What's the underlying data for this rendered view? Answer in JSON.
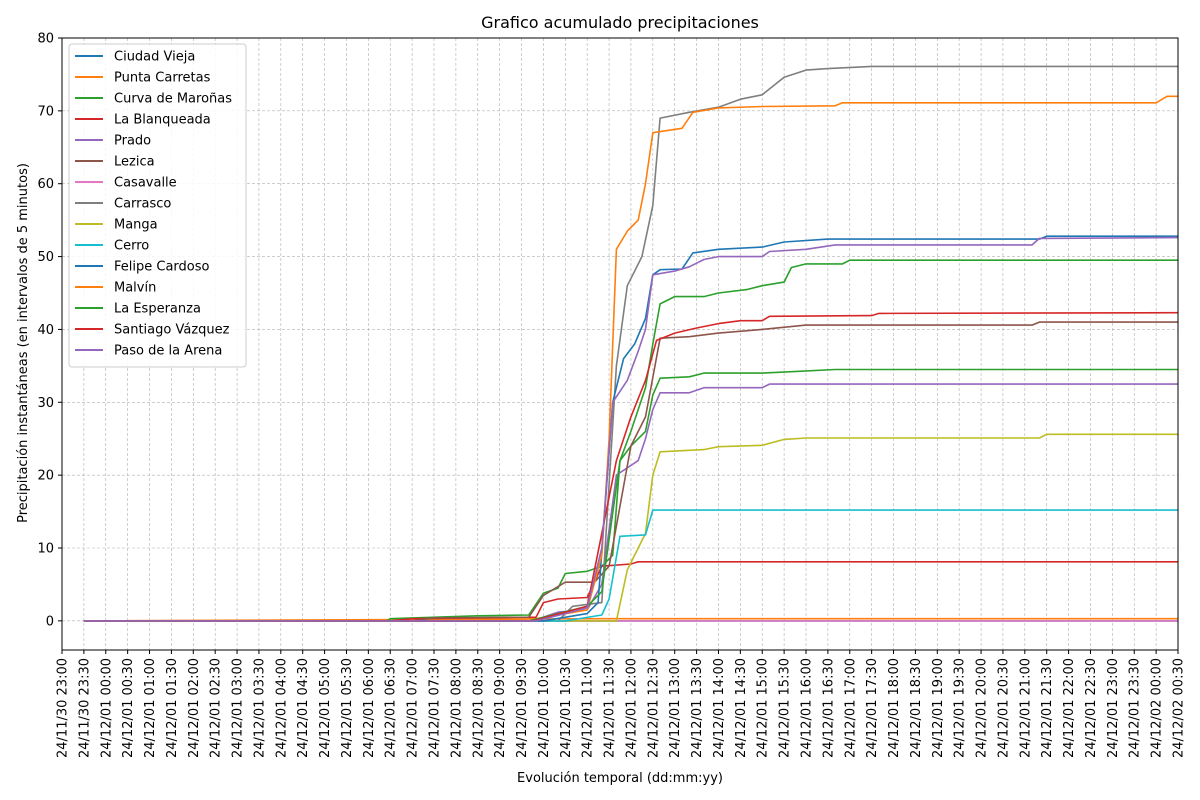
{
  "chart_data": {
    "type": "line",
    "title": "Grafico acumulado precipitaciones",
    "xlabel": "Evolución temporal (dd:mm:yy)",
    "ylabel": "Precipitación instantáneas (en intervalos de 5 minutos)",
    "ylim": [
      -4,
      80
    ],
    "yticks": [
      0,
      10,
      20,
      30,
      40,
      50,
      60,
      70,
      80
    ],
    "xlim": [
      "24/11/30 23:00",
      "24/12/02 00:30"
    ],
    "xticks": [
      "24/11/30 23:00",
      "24/11/30 23:30",
      "24/12/01 00:00",
      "24/12/01 00:30",
      "24/12/01 01:00",
      "24/12/01 01:30",
      "24/12/01 02:00",
      "24/12/01 02:30",
      "24/12/01 03:00",
      "24/12/01 03:30",
      "24/12/01 04:00",
      "24/12/01 04:30",
      "24/12/01 05:00",
      "24/12/01 05:30",
      "24/12/01 06:00",
      "24/12/01 06:30",
      "24/12/01 07:00",
      "24/12/01 07:30",
      "24/12/01 08:00",
      "24/12/01 08:30",
      "24/12/01 09:00",
      "24/12/01 09:30",
      "24/12/01 10:00",
      "24/12/01 10:30",
      "24/12/01 11:00",
      "24/12/01 11:30",
      "24/12/01 12:00",
      "24/12/01 12:30",
      "24/12/01 13:00",
      "24/12/01 13:30",
      "24/12/01 14:00",
      "24/12/01 14:30",
      "24/12/01 15:00",
      "24/12/01 15:30",
      "24/12/01 16:00",
      "24/12/01 16:30",
      "24/12/01 17:00",
      "24/12/01 17:30",
      "24/12/01 18:00",
      "24/12/01 18:30",
      "24/12/01 19:00",
      "24/12/01 19:30",
      "24/12/01 20:00",
      "24/12/01 20:30",
      "24/12/01 21:00",
      "24/12/01 21:30",
      "24/12/01 22:00",
      "24/12/01 22:30",
      "24/12/01 23:00",
      "24/12/01 23:30",
      "24/12/02 00:00",
      "24/12/02 00:30"
    ],
    "grid": true,
    "legend": "top-left",
    "series": [
      {
        "name": "Ciudad Vieja",
        "color": "#1f77b4",
        "points": [
          [
            "24/11/30 23:30",
            0
          ],
          [
            "24/12/01 11:30",
            0
          ],
          [
            "24/12/02 00:30",
            0
          ]
        ]
      },
      {
        "name": "Punta Carretas",
        "color": "#ff7f0e",
        "points": [
          [
            "24/11/30 23:30",
            0
          ],
          [
            "24/12/01 11:30",
            0.3
          ],
          [
            "24/12/02 00:30",
            0.3
          ]
        ]
      },
      {
        "name": "Curva de Maroñas",
        "color": "#2ca02c",
        "points": [
          [
            "24/11/30 23:30",
            0
          ],
          [
            "24/12/01 06:25",
            0
          ],
          [
            "24/12/01 06:30",
            0.3
          ],
          [
            "24/12/01 08:30",
            0.7
          ],
          [
            "24/12/01 09:40",
            0.8
          ],
          [
            "24/12/01 10:00",
            3.8
          ],
          [
            "24/12/01 10:20",
            4.5
          ],
          [
            "24/12/01 10:30",
            6.5
          ],
          [
            "24/12/01 11:00",
            6.8
          ],
          [
            "24/12/01 11:20",
            7.5
          ],
          [
            "24/12/01 11:35",
            9
          ],
          [
            "24/12/01 11:45",
            22
          ],
          [
            "24/12/01 12:00",
            24
          ],
          [
            "24/12/01 12:20",
            26
          ],
          [
            "24/12/01 12:30",
            31
          ],
          [
            "24/12/01 12:40",
            33.3
          ],
          [
            "24/12/01 13:20",
            33.5
          ],
          [
            "24/12/01 13:40",
            34
          ],
          [
            "24/12/01 15:00",
            34
          ],
          [
            "24/12/01 15:40",
            34.2
          ],
          [
            "24/12/01 16:40",
            34.5
          ],
          [
            "24/12/02 00:30",
            34.5
          ]
        ]
      },
      {
        "name": "La Blanqueada",
        "color": "#d62728",
        "points": [
          [
            "24/11/30 23:30",
            0
          ],
          [
            "24/12/01 06:30",
            0
          ],
          [
            "24/12/01 07:00",
            0.3
          ],
          [
            "24/12/01 09:50",
            0.5
          ],
          [
            "24/12/01 10:00",
            2.5
          ],
          [
            "24/12/01 10:20",
            3
          ],
          [
            "24/12/01 11:00",
            3.2
          ],
          [
            "24/12/01 11:20",
            7.5
          ],
          [
            "24/12/01 12:00",
            7.8
          ],
          [
            "24/12/01 12:10",
            8.1
          ],
          [
            "24/12/02 00:30",
            8.1
          ]
        ]
      },
      {
        "name": "Prado",
        "color": "#9467bd",
        "points": [
          [
            "24/11/30 23:30",
            0
          ],
          [
            "24/12/01 09:45",
            0
          ],
          [
            "24/12/01 10:20",
            1.2
          ],
          [
            "24/12/01 11:00",
            1.5
          ],
          [
            "24/12/01 11:20",
            5
          ],
          [
            "24/12/01 11:40",
            20
          ],
          [
            "24/12/01 12:10",
            22
          ],
          [
            "24/12/01 12:20",
            25
          ],
          [
            "24/12/01 12:30",
            29
          ],
          [
            "24/12/01 12:40",
            31.3
          ],
          [
            "24/12/01 13:20",
            31.3
          ],
          [
            "24/12/01 13:40",
            32
          ],
          [
            "24/12/01 15:00",
            32
          ],
          [
            "24/12/01 15:10",
            32.5
          ],
          [
            "24/12/02 00:30",
            32.5
          ]
        ]
      },
      {
        "name": "Lezica",
        "color": "#8c564b",
        "points": [
          [
            "24/11/30 23:30",
            0
          ],
          [
            "24/12/01 07:00",
            0
          ],
          [
            "24/12/01 07:30",
            0.4
          ],
          [
            "24/12/01 09:40",
            0.5
          ],
          [
            "24/12/01 10:00",
            3.5
          ],
          [
            "24/12/01 10:30",
            5.3
          ],
          [
            "24/12/01 11:10",
            5.3
          ],
          [
            "24/12/01 11:30",
            7.5
          ],
          [
            "24/12/01 12:00",
            24
          ],
          [
            "24/12/01 12:20",
            28
          ],
          [
            "24/12/01 12:40",
            38.8
          ],
          [
            "24/12/01 13:20",
            39
          ],
          [
            "24/12/01 14:00",
            39.5
          ],
          [
            "24/12/01 15:00",
            40
          ],
          [
            "24/12/01 16:00",
            40.6
          ],
          [
            "24/12/01 21:10",
            40.6
          ],
          [
            "24/12/01 21:20",
            41
          ],
          [
            "24/12/02 00:30",
            41
          ]
        ]
      },
      {
        "name": "Casavalle",
        "color": "#e377c2",
        "points": [
          [
            "24/11/30 23:30",
            0
          ],
          [
            "24/12/01 11:30",
            0
          ],
          [
            "24/12/02 00:30",
            0
          ]
        ]
      },
      {
        "name": "Carrasco",
        "color": "#7f7f7f",
        "points": [
          [
            "24/11/30 23:30",
            0
          ],
          [
            "24/12/01 10:20",
            0
          ],
          [
            "24/12/01 10:40",
            2
          ],
          [
            "24/12/01 11:20",
            2.5
          ],
          [
            "24/12/01 11:40",
            35
          ],
          [
            "24/12/01 11:55",
            46
          ],
          [
            "24/12/01 12:15",
            50
          ],
          [
            "24/12/01 12:30",
            57
          ],
          [
            "24/12/01 12:40",
            69
          ],
          [
            "24/12/01 13:20",
            69.8
          ],
          [
            "24/12/01 14:00",
            70.5
          ],
          [
            "24/12/01 14:30",
            71.6
          ],
          [
            "24/12/01 15:00",
            72.2
          ],
          [
            "24/12/01 15:30",
            74.6
          ],
          [
            "24/12/01 16:00",
            75.6
          ],
          [
            "24/12/01 16:30",
            75.8
          ],
          [
            "24/12/01 17:30",
            76.1
          ],
          [
            "24/12/02 00:30",
            76.1
          ]
        ]
      },
      {
        "name": "Manga",
        "color": "#bcbd22",
        "points": [
          [
            "24/11/30 23:30",
            0
          ],
          [
            "24/12/01 11:40",
            0
          ],
          [
            "24/12/01 11:55",
            7
          ],
          [
            "24/12/01 12:20",
            12
          ],
          [
            "24/12/01 12:30",
            20
          ],
          [
            "24/12/01 12:40",
            23.2
          ],
          [
            "24/12/01 13:40",
            23.5
          ],
          [
            "24/12/01 14:00",
            23.9
          ],
          [
            "24/12/01 15:00",
            24.1
          ],
          [
            "24/12/01 15:30",
            24.9
          ],
          [
            "24/12/01 16:00",
            25.1
          ],
          [
            "24/12/01 21:20",
            25.1
          ],
          [
            "24/12/01 21:30",
            25.6
          ],
          [
            "24/12/02 00:30",
            25.6
          ]
        ]
      },
      {
        "name": "Cerro",
        "color": "#17becf",
        "points": [
          [
            "24/11/30 23:30",
            0
          ],
          [
            "24/12/01 10:30",
            0
          ],
          [
            "24/12/01 11:20",
            0.8
          ],
          [
            "24/12/01 11:30",
            3
          ],
          [
            "24/12/01 11:45",
            11.6
          ],
          [
            "24/12/01 12:20",
            11.8
          ],
          [
            "24/12/01 12:30",
            15.2
          ],
          [
            "24/12/02 00:30",
            15.2
          ]
        ]
      },
      {
        "name": "Felipe Cardoso",
        "color": "#1f77b4",
        "points": [
          [
            "24/11/30 23:30",
            0
          ],
          [
            "24/12/01 10:00",
            0
          ],
          [
            "24/12/01 11:00",
            1
          ],
          [
            "24/12/01 11:15",
            2.5
          ],
          [
            "24/12/01 11:35",
            30
          ],
          [
            "24/12/01 11:50",
            36
          ],
          [
            "24/12/01 12:05",
            38
          ],
          [
            "24/12/01 12:20",
            41.5
          ],
          [
            "24/12/01 12:30",
            47.5
          ],
          [
            "24/12/01 12:40",
            48.2
          ],
          [
            "24/12/01 13:10",
            48.3
          ],
          [
            "24/12/01 13:25",
            50.5
          ],
          [
            "24/12/01 14:00",
            51
          ],
          [
            "24/12/01 15:00",
            51.3
          ],
          [
            "24/12/01 15:30",
            52
          ],
          [
            "24/12/01 16:30",
            52.4
          ],
          [
            "24/12/01 21:20",
            52.4
          ],
          [
            "24/12/01 21:30",
            52.8
          ],
          [
            "24/12/02 00:30",
            52.8
          ]
        ]
      },
      {
        "name": "Malvín",
        "color": "#ff7f0e",
        "points": [
          [
            "24/11/30 23:30",
            0
          ],
          [
            "24/12/01 07:30",
            0
          ],
          [
            "24/12/01 09:50",
            0.3
          ],
          [
            "24/12/01 11:00",
            1.5
          ],
          [
            "24/12/01 11:20",
            9
          ],
          [
            "24/12/01 11:30",
            25
          ],
          [
            "24/12/01 11:40",
            51
          ],
          [
            "24/12/01 11:55",
            53.5
          ],
          [
            "24/12/01 12:10",
            55
          ],
          [
            "24/12/01 12:20",
            60
          ],
          [
            "24/12/01 12:30",
            67
          ],
          [
            "24/12/01 13:10",
            67.6
          ],
          [
            "24/12/01 13:25",
            69.8
          ],
          [
            "24/12/01 14:00",
            70.4
          ],
          [
            "24/12/01 15:00",
            70.6
          ],
          [
            "24/12/01 16:40",
            70.7
          ],
          [
            "24/12/01 16:50",
            71.1
          ],
          [
            "24/12/02 00:00",
            71.1
          ],
          [
            "24/12/02 00:15",
            72
          ],
          [
            "24/12/02 00:30",
            72
          ]
        ]
      },
      {
        "name": "La Esperanza",
        "color": "#2ca02c",
        "points": [
          [
            "24/11/30 23:30",
            0
          ],
          [
            "24/12/01 09:40",
            0
          ],
          [
            "24/12/01 11:00",
            2
          ],
          [
            "24/12/01 11:20",
            4
          ],
          [
            "24/12/01 11:45",
            22
          ],
          [
            "24/12/01 12:00",
            26
          ],
          [
            "24/12/01 12:20",
            32
          ],
          [
            "24/12/01 12:30",
            38
          ],
          [
            "24/12/01 12:40",
            43.5
          ],
          [
            "24/12/01 13:00",
            44.5
          ],
          [
            "24/12/01 13:40",
            44.5
          ],
          [
            "24/12/01 14:00",
            45
          ],
          [
            "24/12/01 14:40",
            45.5
          ],
          [
            "24/12/01 15:00",
            46
          ],
          [
            "24/12/01 15:30",
            46.5
          ],
          [
            "24/12/01 15:40",
            48.5
          ],
          [
            "24/12/01 16:00",
            49
          ],
          [
            "24/12/01 16:50",
            49
          ],
          [
            "24/12/01 17:00",
            49.5
          ],
          [
            "24/12/02 00:30",
            49.5
          ]
        ]
      },
      {
        "name": "Santiago Vázquez",
        "color": "#d62728",
        "points": [
          [
            "24/11/30 23:30",
            0
          ],
          [
            "24/12/01 09:45",
            0
          ],
          [
            "24/12/01 11:00",
            2
          ],
          [
            "24/12/01 11:40",
            22
          ],
          [
            "24/12/01 12:00",
            28
          ],
          [
            "24/12/01 12:20",
            33
          ],
          [
            "24/12/01 12:35",
            38.5
          ],
          [
            "24/12/01 13:00",
            39.5
          ],
          [
            "24/12/01 13:30",
            40.2
          ],
          [
            "24/12/01 14:00",
            40.8
          ],
          [
            "24/12/01 14:30",
            41.2
          ],
          [
            "24/12/01 15:00",
            41.2
          ],
          [
            "24/12/01 15:10",
            41.8
          ],
          [
            "24/12/01 17:30",
            41.9
          ],
          [
            "24/12/01 17:40",
            42.2
          ],
          [
            "24/12/02 00:30",
            42.3
          ]
        ]
      },
      {
        "name": "Paso de la Arena",
        "color": "#9467bd",
        "points": [
          [
            "24/11/30 23:30",
            0
          ],
          [
            "24/12/01 09:50",
            0
          ],
          [
            "24/12/01 10:30",
            1
          ],
          [
            "24/12/01 11:00",
            1.8
          ],
          [
            "24/12/01 11:20",
            10
          ],
          [
            "24/12/01 11:35",
            30
          ],
          [
            "24/12/01 11:55",
            33
          ],
          [
            "24/12/01 12:10",
            37
          ],
          [
            "24/12/01 12:20",
            40
          ],
          [
            "24/12/01 12:30",
            47.5
          ],
          [
            "24/12/01 13:00",
            48
          ],
          [
            "24/12/01 13:20",
            48.6
          ],
          [
            "24/12/01 13:40",
            49.6
          ],
          [
            "24/12/01 14:00",
            50
          ],
          [
            "24/12/01 15:00",
            50
          ],
          [
            "24/12/01 15:10",
            50.7
          ],
          [
            "24/12/01 16:00",
            51
          ],
          [
            "24/12/01 16:40",
            51.6
          ],
          [
            "24/12/01 21:10",
            51.6
          ],
          [
            "24/12/01 21:20",
            52.5
          ],
          [
            "24/12/02 00:30",
            52.6
          ]
        ]
      }
    ]
  }
}
